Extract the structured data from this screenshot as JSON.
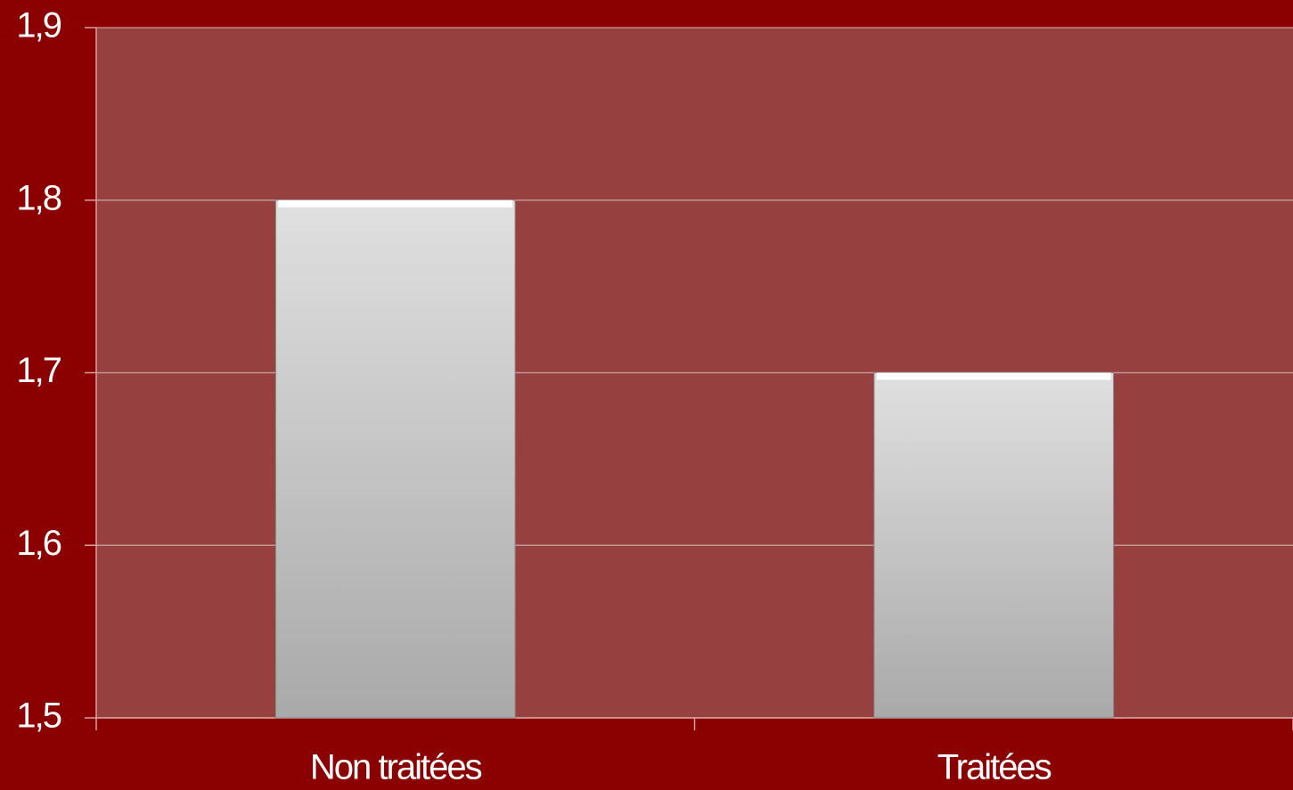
{
  "chart_data": {
    "type": "bar",
    "categories": [
      "Non traitées",
      "Traitées"
    ],
    "values": [
      1.8,
      1.7
    ],
    "color": "#e0e0e0",
    "ylim": [
      1.5,
      1.9
    ],
    "yticks": [
      {
        "value": 1.5,
        "label": "1,5"
      },
      {
        "value": 1.6,
        "label": "1,6"
      },
      {
        "value": 1.7,
        "label": "1,7"
      },
      {
        "value": 1.8,
        "label": "1,8"
      },
      {
        "value": 1.9,
        "label": "1,9"
      }
    ],
    "grid": true
  }
}
